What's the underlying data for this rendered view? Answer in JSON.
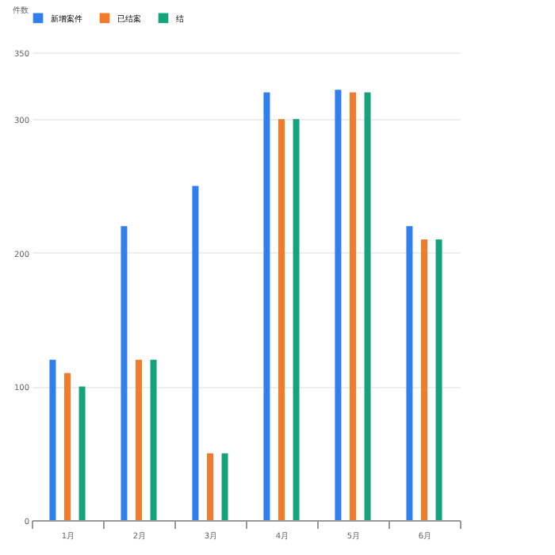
{
  "chart_data": {
    "type": "bar",
    "ylabel": "件数",
    "categories": [
      "1月",
      "2月",
      "3月",
      "4月",
      "5月",
      "6月"
    ],
    "series": [
      {
        "name": "新增案件",
        "color": "#2f80ed",
        "values": [
          120,
          220,
          250,
          320,
          322,
          220
        ]
      },
      {
        "name": "已结案",
        "color": "#f47b2a",
        "values": [
          110,
          120,
          50,
          300,
          320,
          210
        ]
      },
      {
        "name": "结",
        "color": "#14a37a",
        "values": [
          100,
          120,
          50,
          300,
          320,
          210
        ]
      }
    ],
    "ylim": [
      0,
      350
    ],
    "yticks": [
      0,
      100,
      200,
      300,
      350
    ],
    "grid": "y",
    "legend": "top"
  }
}
